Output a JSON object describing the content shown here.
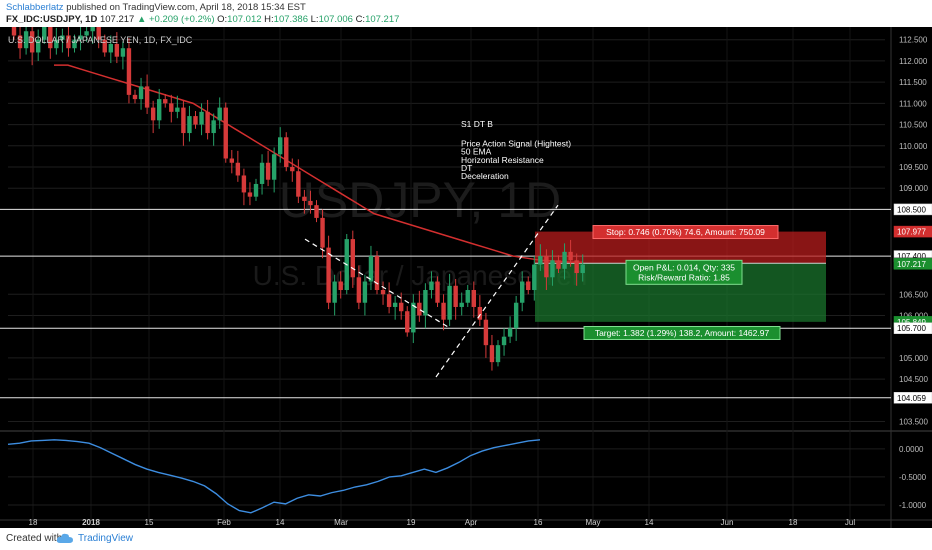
{
  "header": {
    "author": "Schlabberlatz",
    "published": "published on TradingView.com, April 18, 2018 15:34 EST",
    "symbol": "FX_IDC:USDJPY, 1D",
    "last": "107.217",
    "change": "▲ +0.209 (+0.2%)",
    "o_label": "O:",
    "o_val": "107.012",
    "h_label": "H:",
    "h_val": "107.386",
    "l_label": "L:",
    "l_val": "107.006",
    "c_label": "C:",
    "c_val": "107.217"
  },
  "legend": "U.S. DOLLAR / JAPANESE YEN, 1D, FX_IDC",
  "watermark": {
    "symbol": "USDJPY, 1D",
    "name": "U.S. Dollar / Japanese Yen"
  },
  "annotation": [
    "S1 DT B",
    "",
    "Price Action Signal (Hightest)",
    "50 EMA",
    "Horizontal Resistance",
    "DT",
    "Deceleration"
  ],
  "position": {
    "stop_label": "Stop: 0.746 (0.70%) 74.6, Amount: 750.09",
    "open_label_1": "Open P&L: 0.014, Qty: 335",
    "open_label_2": "Risk/Reward Ratio: 1.85",
    "target_label": "Target: 1.382 (1.29%) 138.2, Amount: 1462.97",
    "entry": 107.231,
    "stop": 107.977,
    "target": 105.849
  },
  "colors": {
    "background": "#000000",
    "up": "#26a269",
    "down": "#d63a3a",
    "ema": "#d32f2f",
    "oscillator": "#3d8de0",
    "stop_zone": "#b71c1c",
    "target_zone": "#1b7a2f",
    "grid": "#1e1e1e"
  },
  "footer": {
    "created": "Created with",
    "brand": "TradingView"
  },
  "chart_data": {
    "type": "candlestick",
    "price_axis": {
      "ylim": [
        103.3,
        112.8
      ],
      "ticks": [
        112.5,
        112.0,
        111.5,
        111.0,
        110.5,
        110.0,
        109.5,
        109.0,
        106.5,
        106.0,
        105.0,
        104.5,
        103.5
      ]
    },
    "price_labels": [
      {
        "value": 108.5,
        "text": "108.500",
        "style": "white"
      },
      {
        "value": 107.977,
        "text": "107.977",
        "style": "red"
      },
      {
        "value": 107.4,
        "text": "107.400",
        "style": "white"
      },
      {
        "value": 107.231,
        "text": "107.231",
        "style": "dark"
      },
      {
        "value": 107.217,
        "text": "107.217",
        "style": "green"
      },
      {
        "value": 105.849,
        "text": "105.849",
        "style": "green"
      },
      {
        "value": 105.7,
        "text": "105.700",
        "style": "white"
      },
      {
        "value": 104.059,
        "text": "104.059",
        "style": "white"
      }
    ],
    "horizontal_levels": [
      108.5,
      107.4,
      105.7,
      104.059
    ],
    "x_labels": [
      "18",
      "2018",
      "15",
      "Feb",
      "14",
      "Mar",
      "19",
      "Apr",
      "16",
      "May",
      "14",
      "Jun",
      "18",
      "Jul"
    ],
    "closes": [
      112.6,
      112.3,
      112.7,
      112.2,
      112.5,
      112.8,
      112.3,
      112.5,
      112.6,
      112.3,
      112.5,
      112.6,
      112.7,
      112.9,
      112.5,
      112.2,
      112.4,
      112.1,
      112.3,
      111.2,
      111.1,
      111.4,
      110.9,
      110.6,
      111.1,
      111.0,
      110.8,
      110.9,
      110.3,
      110.7,
      110.5,
      110.8,
      110.3,
      110.6,
      110.9,
      109.7,
      109.6,
      109.3,
      108.9,
      108.8,
      109.1,
      109.6,
      109.2,
      109.8,
      110.2,
      109.5,
      109.4,
      108.8,
      108.7,
      108.6,
      108.3,
      107.6,
      106.3,
      106.8,
      106.6,
      107.8,
      106.9,
      106.3,
      106.8,
      107.4,
      106.6,
      106.5,
      106.2,
      106.3,
      106.1,
      105.6,
      106.3,
      106.0,
      106.6,
      106.8,
      106.3,
      105.9,
      106.7,
      106.2,
      106.3,
      106.6,
      106.2,
      105.9,
      105.3,
      104.9,
      105.3,
      105.5,
      105.7,
      106.3,
      106.8,
      106.6,
      107.2,
      107.4,
      106.9,
      107.3,
      107.1,
      107.5,
      107.3,
      107.0,
      107.2
    ],
    "ema": [
      111.9,
      111.9,
      111.8,
      111.7,
      111.6,
      111.5,
      111.4,
      111.3,
      111.2,
      111.1,
      111.0,
      110.8,
      110.6,
      110.4,
      110.2,
      110.0,
      109.8,
      109.6,
      109.4,
      109.2,
      109.0,
      108.8,
      108.6,
      108.4,
      108.3,
      108.2,
      108.1,
      108.0,
      107.9,
      107.8,
      107.7,
      107.6,
      107.5,
      107.4,
      107.35,
      107.3,
      107.28,
      107.26,
      107.25
    ],
    "oscillator": {
      "ylim": [
        -1.25,
        0.3
      ],
      "ticks": [
        {
          "value": 0.0,
          "text": "0.0000"
        },
        {
          "value": -0.5,
          "text": "-0.5000"
        },
        {
          "value": -1.0,
          "text": "-1.0000"
        }
      ],
      "values": [
        0.08,
        0.1,
        0.14,
        0.15,
        0.16,
        0.15,
        0.13,
        0.1,
        0.02,
        -0.08,
        -0.18,
        -0.28,
        -0.36,
        -0.42,
        -0.47,
        -0.52,
        -0.58,
        -0.66,
        -0.8,
        -0.98,
        -1.1,
        -1.14,
        -1.05,
        -0.95,
        -0.98,
        -0.88,
        -0.82,
        -0.84,
        -0.78,
        -0.74,
        -0.68,
        -0.64,
        -0.58,
        -0.5,
        -0.48,
        -0.42,
        -0.36,
        -0.42,
        -0.34,
        -0.24,
        -0.12,
        -0.04,
        0.02,
        0.06,
        0.1,
        0.14,
        0.16
      ]
    }
  }
}
